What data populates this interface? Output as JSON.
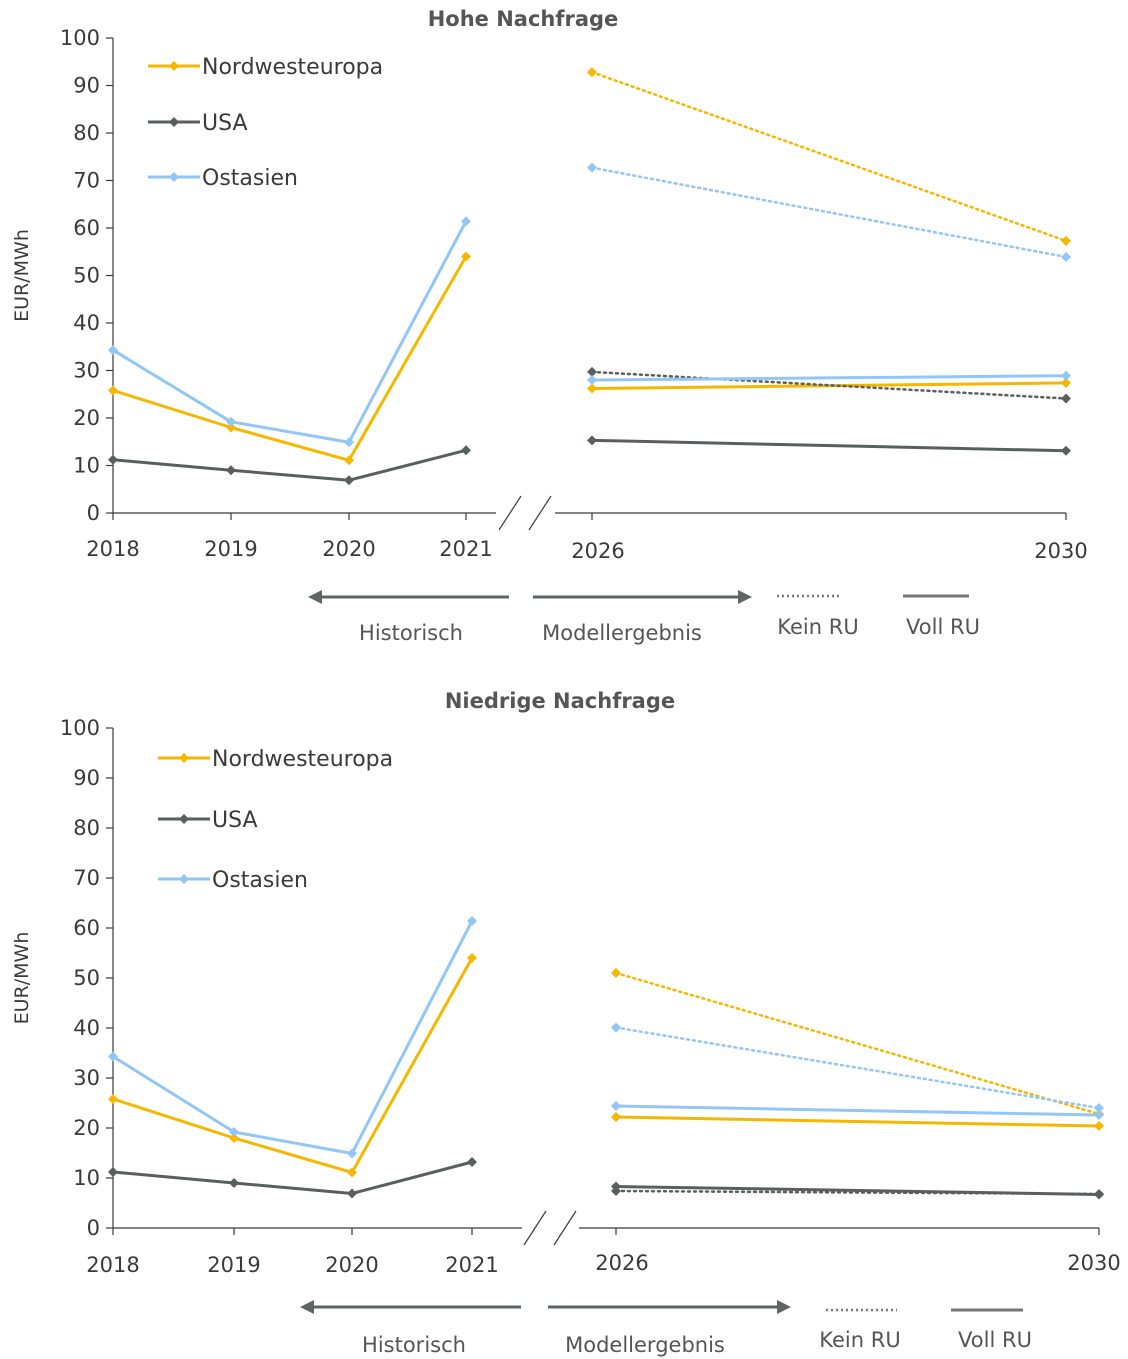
{
  "colors": {
    "Nordwesteuropa": "#f5b700",
    "USA": "#595f5f",
    "Ostasien": "#91c6f5",
    "axis": "#3a3a3a",
    "annotation": "#5f6464"
  },
  "annotations": {
    "historisch": "Historisch",
    "modellergebnis": "Modellergebnis",
    "kein_ru": "Kein RU",
    "voll_ru": "Voll RU"
  },
  "chart_data": [
    {
      "type": "line",
      "title": "Hohe Nachfrage",
      "ylabel": "EUR/MWh",
      "ylim": [
        0,
        100
      ],
      "yticks": [
        0,
        10,
        20,
        30,
        40,
        50,
        60,
        70,
        80,
        90,
        100
      ],
      "grid": false,
      "legend_position": "top-left",
      "historical_x": [
        "2018",
        "2019",
        "2020",
        "2021"
      ],
      "model_x": [
        "2026",
        "2030"
      ],
      "axis_break": "between 2021 and 2026",
      "series": [
        {
          "name": "Nordwesteuropa",
          "historical": [
            25.8,
            18.0,
            11.1,
            54.0
          ],
          "kein_ru": [
            92.8,
            57.3
          ],
          "voll_ru": [
            26.2,
            27.4
          ]
        },
        {
          "name": "USA",
          "historical": [
            11.2,
            9.0,
            6.9,
            13.2
          ],
          "kein_ru": [
            29.7,
            24.1
          ],
          "voll_ru": [
            15.3,
            13.1
          ]
        },
        {
          "name": "Ostasien",
          "historical": [
            34.3,
            19.2,
            14.9,
            61.4
          ],
          "kein_ru": [
            72.7,
            53.9
          ],
          "voll_ru": [
            28.0,
            28.9
          ]
        }
      ]
    },
    {
      "type": "line",
      "title": "Niedrige Nachfrage",
      "ylabel": "EUR/MWh",
      "ylim": [
        0,
        100
      ],
      "yticks": [
        0,
        10,
        20,
        30,
        40,
        50,
        60,
        70,
        80,
        90,
        100
      ],
      "grid": false,
      "legend_position": "top-left",
      "historical_x": [
        "2018",
        "2019",
        "2020",
        "2021"
      ],
      "model_x": [
        "2026",
        "2030"
      ],
      "axis_break": "between 2021 and 2026",
      "series": [
        {
          "name": "Nordwesteuropa",
          "historical": [
            25.8,
            18.0,
            11.1,
            54.0
          ],
          "kein_ru": [
            51.0,
            22.8
          ],
          "voll_ru": [
            22.2,
            20.4
          ]
        },
        {
          "name": "USA",
          "historical": [
            11.2,
            9.0,
            6.9,
            13.2
          ],
          "kein_ru": [
            7.4,
            6.8
          ],
          "voll_ru": [
            8.3,
            6.7
          ]
        },
        {
          "name": "Ostasien",
          "historical": [
            34.3,
            19.2,
            14.9,
            61.4
          ],
          "kein_ru": [
            40.1,
            24.0
          ],
          "voll_ru": [
            24.4,
            22.6
          ]
        }
      ]
    }
  ]
}
